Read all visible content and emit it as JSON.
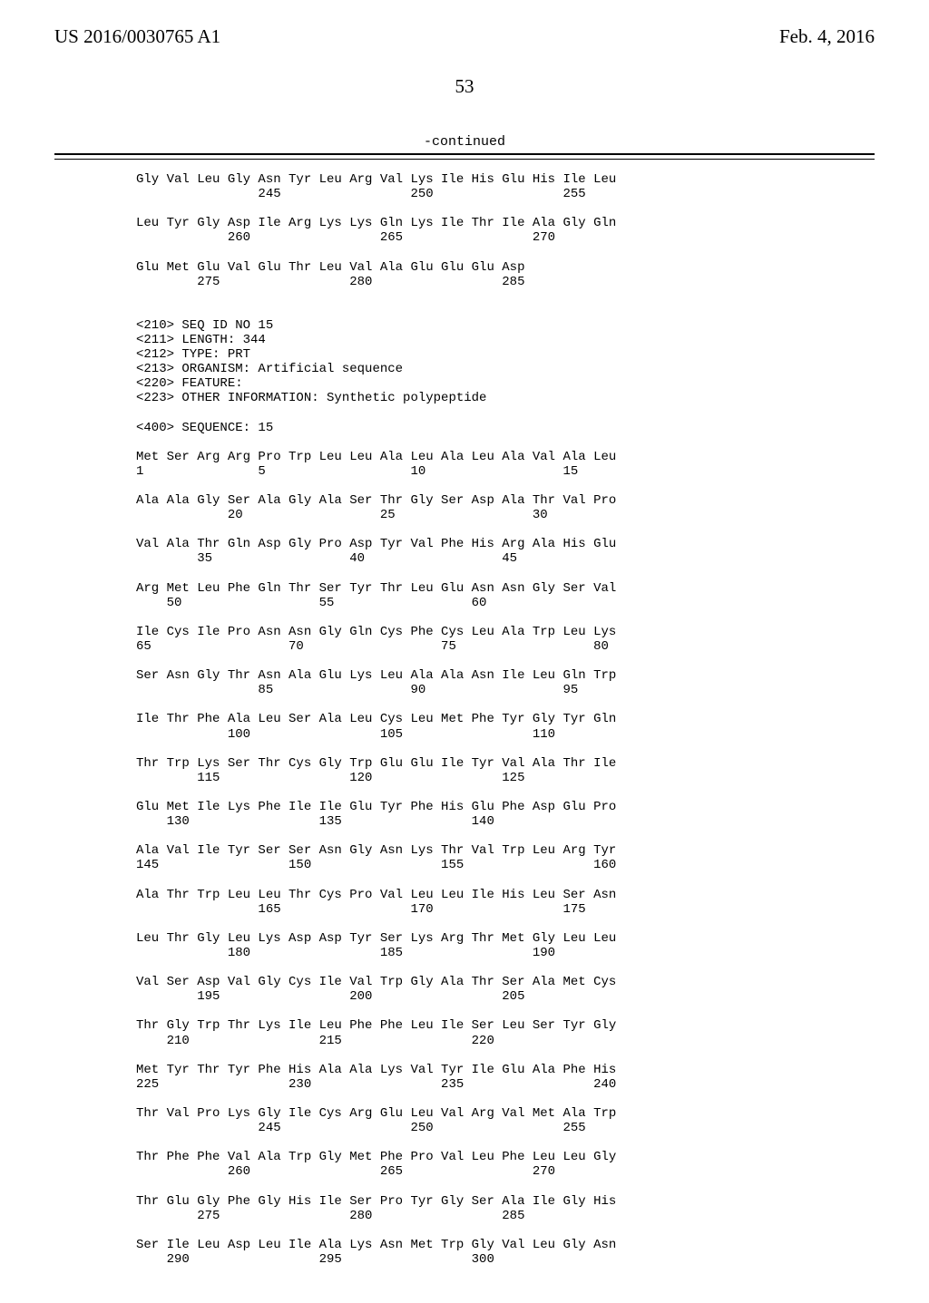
{
  "header": {
    "pubNumber": "US 2016/0030765 A1",
    "pubDate": "Feb. 4, 2016"
  },
  "pageNumber": "53",
  "continued": "-continued",
  "lines": [
    "Gly Val Leu Gly Asn Tyr Leu Arg Val Lys Ile His Glu His Ile Leu",
    "                245                 250                 255",
    "",
    "Leu Tyr Gly Asp Ile Arg Lys Lys Gln Lys Ile Thr Ile Ala Gly Gln",
    "            260                 265                 270",
    "",
    "Glu Met Glu Val Glu Thr Leu Val Ala Glu Glu Glu Asp",
    "        275                 280                 285",
    "",
    "",
    "<210> SEQ ID NO 15",
    "<211> LENGTH: 344",
    "<212> TYPE: PRT",
    "<213> ORGANISM: Artificial sequence",
    "<220> FEATURE:",
    "<223> OTHER INFORMATION: Synthetic polypeptide",
    "",
    "<400> SEQUENCE: 15",
    "",
    "Met Ser Arg Arg Pro Trp Leu Leu Ala Leu Ala Leu Ala Val Ala Leu",
    "1               5                   10                  15",
    "",
    "Ala Ala Gly Ser Ala Gly Ala Ser Thr Gly Ser Asp Ala Thr Val Pro",
    "            20                  25                  30",
    "",
    "Val Ala Thr Gln Asp Gly Pro Asp Tyr Val Phe His Arg Ala His Glu",
    "        35                  40                  45",
    "",
    "Arg Met Leu Phe Gln Thr Ser Tyr Thr Leu Glu Asn Asn Gly Ser Val",
    "    50                  55                  60",
    "",
    "Ile Cys Ile Pro Asn Asn Gly Gln Cys Phe Cys Leu Ala Trp Leu Lys",
    "65                  70                  75                  80",
    "",
    "Ser Asn Gly Thr Asn Ala Glu Lys Leu Ala Ala Asn Ile Leu Gln Trp",
    "                85                  90                  95",
    "",
    "Ile Thr Phe Ala Leu Ser Ala Leu Cys Leu Met Phe Tyr Gly Tyr Gln",
    "            100                 105                 110",
    "",
    "Thr Trp Lys Ser Thr Cys Gly Trp Glu Glu Ile Tyr Val Ala Thr Ile",
    "        115                 120                 125",
    "",
    "Glu Met Ile Lys Phe Ile Ile Glu Tyr Phe His Glu Phe Asp Glu Pro",
    "    130                 135                 140",
    "",
    "Ala Val Ile Tyr Ser Ser Asn Gly Asn Lys Thr Val Trp Leu Arg Tyr",
    "145                 150                 155                 160",
    "",
    "Ala Thr Trp Leu Leu Thr Cys Pro Val Leu Leu Ile His Leu Ser Asn",
    "                165                 170                 175",
    "",
    "Leu Thr Gly Leu Lys Asp Asp Tyr Ser Lys Arg Thr Met Gly Leu Leu",
    "            180                 185                 190",
    "",
    "Val Ser Asp Val Gly Cys Ile Val Trp Gly Ala Thr Ser Ala Met Cys",
    "        195                 200                 205",
    "",
    "Thr Gly Trp Thr Lys Ile Leu Phe Phe Leu Ile Ser Leu Ser Tyr Gly",
    "    210                 215                 220",
    "",
    "Met Tyr Thr Tyr Phe His Ala Ala Lys Val Tyr Ile Glu Ala Phe His",
    "225                 230                 235                 240",
    "",
    "Thr Val Pro Lys Gly Ile Cys Arg Glu Leu Val Arg Val Met Ala Trp",
    "                245                 250                 255",
    "",
    "Thr Phe Phe Val Ala Trp Gly Met Phe Pro Val Leu Phe Leu Leu Gly",
    "            260                 265                 270",
    "",
    "Thr Glu Gly Phe Gly His Ile Ser Pro Tyr Gly Ser Ala Ile Gly His",
    "        275                 280                 285",
    "",
    "Ser Ile Leu Asp Leu Ile Ala Lys Asn Met Trp Gly Val Leu Gly Asn",
    "    290                 295                 300"
  ]
}
